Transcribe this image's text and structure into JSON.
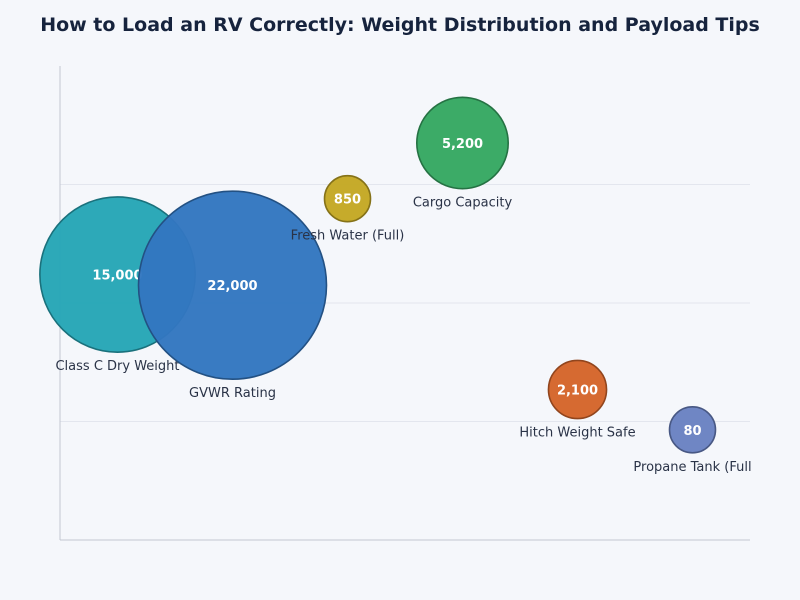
{
  "chart_data": {
    "type": "scatter",
    "title": "How to Load an RV Correctly: Weight Distribution and Payload Tips",
    "xlabel": "",
    "ylabel": "",
    "xlim": [
      0,
      6
    ],
    "ylim": [
      0,
      4
    ],
    "grid": true,
    "points": [
      {
        "label": "Class C Dry Weight",
        "value": 15000,
        "display": "15,000",
        "x": 0.5,
        "y": 2.24,
        "color": "#26a6b6"
      },
      {
        "label": "GVWR Rating",
        "value": 22000,
        "display": "22,000",
        "x": 1.5,
        "y": 2.15,
        "color": "#3377c0"
      },
      {
        "label": "Fresh Water (Full)",
        "value": 850,
        "display": "850",
        "x": 2.5,
        "y": 2.88,
        "color": "#c4a824"
      },
      {
        "label": "Cargo Capacity",
        "value": 5200,
        "display": "5,200",
        "x": 3.5,
        "y": 3.35,
        "color": "#36a862"
      },
      {
        "label": "Hitch Weight Safe",
        "value": 2100,
        "display": "2,100",
        "x": 4.5,
        "y": 1.27,
        "color": "#d5652a"
      },
      {
        "label": "Propane Tank (Full",
        "value": 80,
        "display": "80",
        "x": 5.5,
        "y": 0.93,
        "color": "#6a82c2"
      }
    ]
  }
}
